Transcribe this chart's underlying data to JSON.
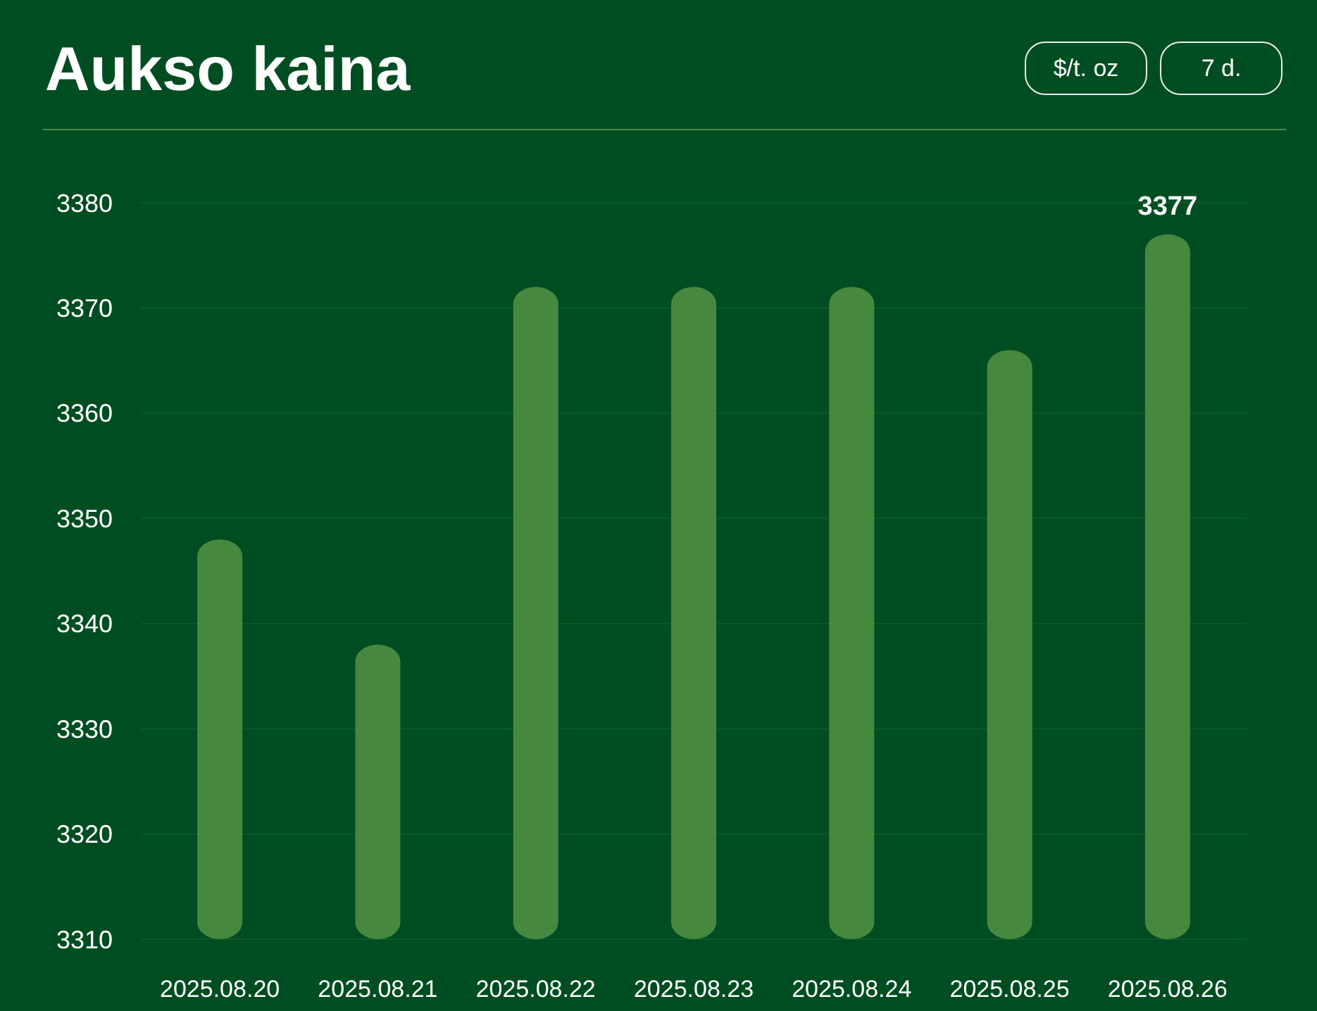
{
  "chart_data": {
    "type": "bar",
    "title": "Aukso kaina",
    "annotations": [
      "$/t. oz",
      "7 d."
    ],
    "categories": [
      "2025.08.20",
      "2025.08.21",
      "2025.08.22",
      "2025.08.23",
      "2025.08.24",
      "2025.08.25",
      "2025.08.26"
    ],
    "values": [
      3348,
      3338,
      3372,
      3372,
      3372,
      3366,
      3377
    ],
    "value_labels": [
      null,
      null,
      null,
      null,
      null,
      null,
      "3377"
    ],
    "color": "#46883e",
    "ylim": [
      3310,
      3380
    ],
    "yticks": [
      3310,
      3320,
      3330,
      3340,
      3350,
      3360,
      3370,
      3380
    ],
    "grid": true
  }
}
